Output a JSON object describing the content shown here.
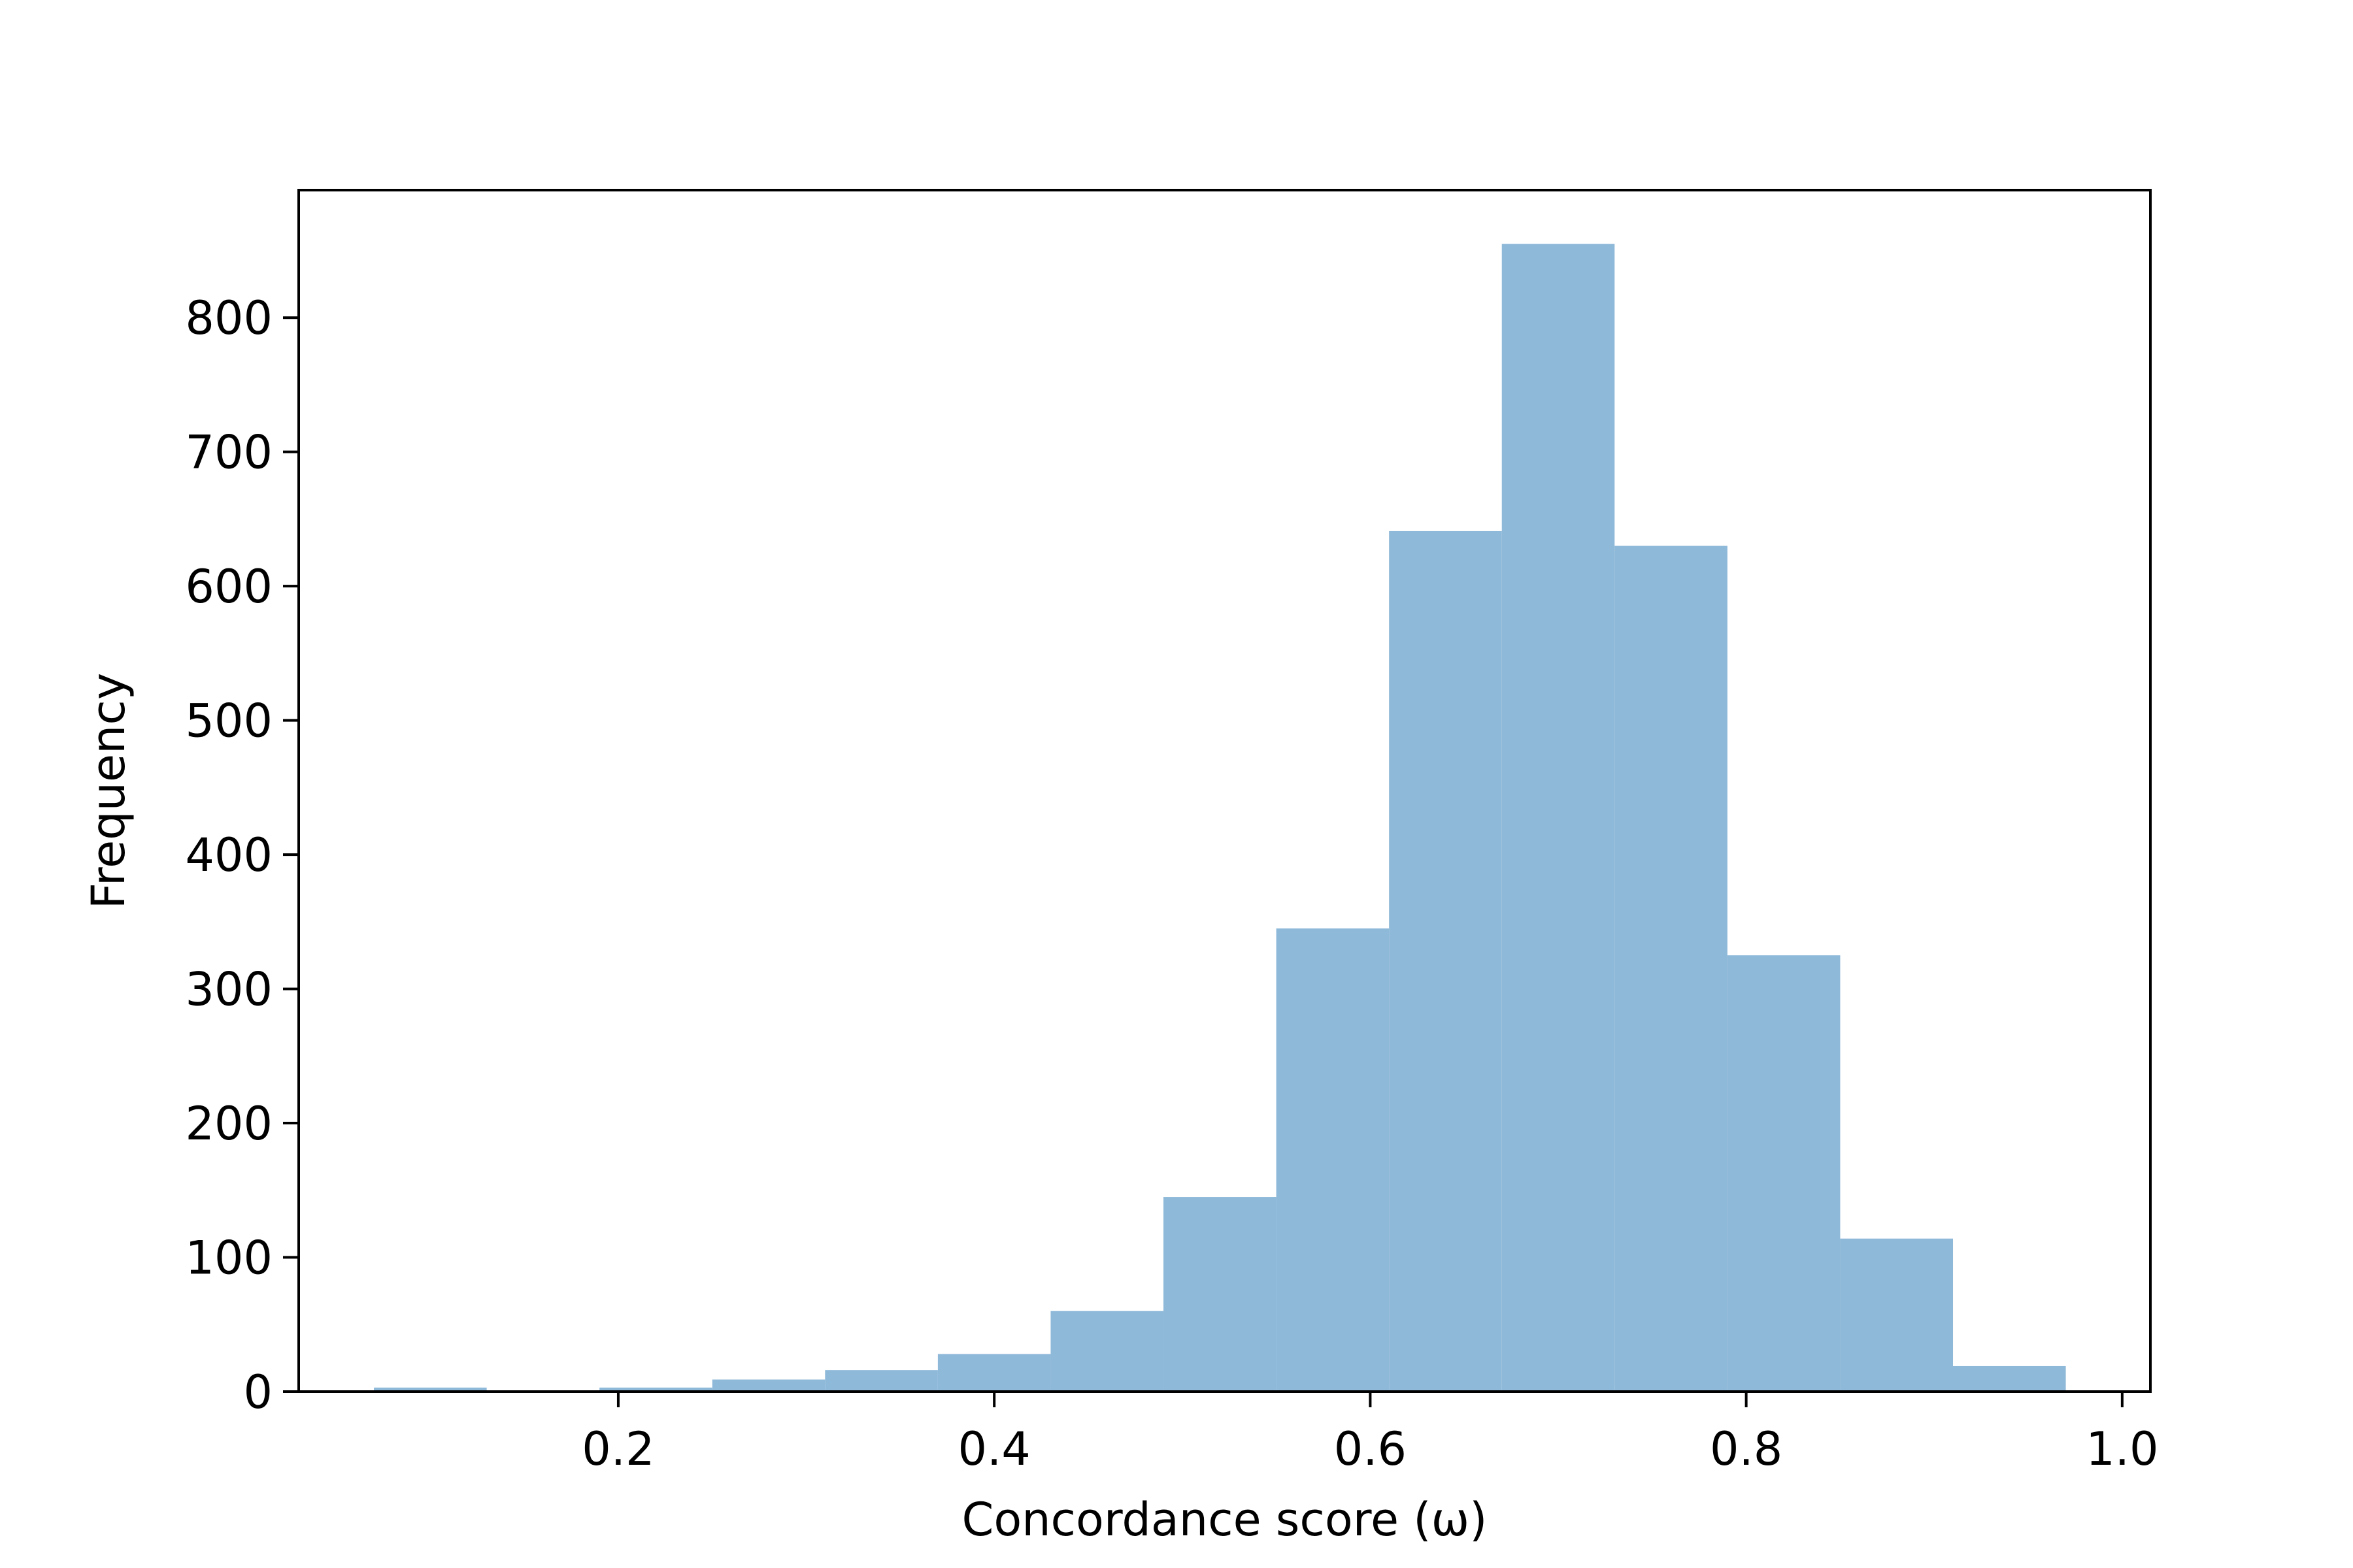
{
  "chart_data": {
    "type": "bar",
    "subtype": "histogram",
    "xlabel": "Concordance score (ω)",
    "ylabel": "Frequency",
    "xlim": [
      0.03,
      1.015
    ],
    "ylim": [
      0,
      895
    ],
    "grid": false,
    "bar_color": "#8fb9d9",
    "bins": [
      {
        "x0": 0.07,
        "x1": 0.13,
        "value": 3
      },
      {
        "x0": 0.13,
        "x1": 0.19,
        "value": 0
      },
      {
        "x0": 0.19,
        "x1": 0.25,
        "value": 3
      },
      {
        "x0": 0.25,
        "x1": 0.31,
        "value": 9
      },
      {
        "x0": 0.31,
        "x1": 0.37,
        "value": 16
      },
      {
        "x0": 0.37,
        "x1": 0.43,
        "value": 28
      },
      {
        "x0": 0.43,
        "x1": 0.49,
        "value": 60
      },
      {
        "x0": 0.49,
        "x1": 0.55,
        "value": 145
      },
      {
        "x0": 0.55,
        "x1": 0.61,
        "value": 345
      },
      {
        "x0": 0.61,
        "x1": 0.67,
        "value": 641
      },
      {
        "x0": 0.67,
        "x1": 0.73,
        "value": 855
      },
      {
        "x0": 0.73,
        "x1": 0.79,
        "value": 630
      },
      {
        "x0": 0.79,
        "x1": 0.85,
        "value": 325
      },
      {
        "x0": 0.85,
        "x1": 0.91,
        "value": 114
      },
      {
        "x0": 0.91,
        "x1": 0.97,
        "value": 19
      }
    ],
    "xticks": [
      {
        "value": 0.2,
        "label": "0.2"
      },
      {
        "value": 0.4,
        "label": "0.4"
      },
      {
        "value": 0.6,
        "label": "0.6"
      },
      {
        "value": 0.8,
        "label": "0.8"
      },
      {
        "value": 1.0,
        "label": "1.0"
      }
    ],
    "yticks": [
      {
        "value": 0,
        "label": "0"
      },
      {
        "value": 100,
        "label": "100"
      },
      {
        "value": 200,
        "label": "200"
      },
      {
        "value": 300,
        "label": "300"
      },
      {
        "value": 400,
        "label": "400"
      },
      {
        "value": 500,
        "label": "500"
      },
      {
        "value": 600,
        "label": "600"
      },
      {
        "value": 700,
        "label": "700"
      },
      {
        "value": 800,
        "label": "800"
      }
    ]
  }
}
